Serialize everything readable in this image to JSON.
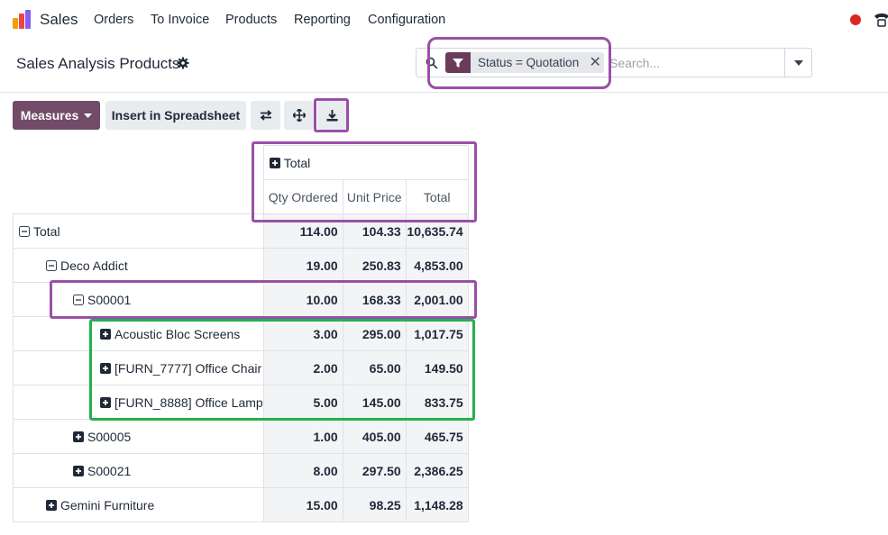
{
  "app": {
    "name": "Sales"
  },
  "nav": [
    {
      "label": "Orders"
    },
    {
      "label": "To Invoice"
    },
    {
      "label": "Products"
    },
    {
      "label": "Reporting"
    },
    {
      "label": "Configuration"
    }
  ],
  "breadcrumb": {
    "title": "Sales Analysis Products"
  },
  "search": {
    "facet_label": "Status = Quotation",
    "placeholder": "Search..."
  },
  "toolbar": {
    "measures_label": "Measures",
    "insert_label": "Insert in Spreadsheet"
  },
  "pivot": {
    "col_header": "Total",
    "measures": [
      "Qty Ordered",
      "Unit Price",
      "Total"
    ],
    "rows": [
      {
        "label": "Total",
        "level": 0,
        "state": "expanded",
        "qty": "114.00",
        "price": "104.33",
        "total": "10,635.74"
      },
      {
        "label": "Deco Addict",
        "level": 1,
        "state": "expanded",
        "qty": "19.00",
        "price": "250.83",
        "total": "4,853.00"
      },
      {
        "label": "S00001",
        "level": 2,
        "state": "expanded",
        "qty": "10.00",
        "price": "168.33",
        "total": "2,001.00"
      },
      {
        "label": "Acoustic Bloc Screens",
        "level": 3,
        "state": "collapsed",
        "qty": "3.00",
        "price": "295.00",
        "total": "1,017.75"
      },
      {
        "label": "[FURN_7777] Office Chair",
        "level": 3,
        "state": "collapsed",
        "qty": "2.00",
        "price": "65.00",
        "total": "149.50"
      },
      {
        "label": "[FURN_8888] Office Lamp",
        "level": 3,
        "state": "collapsed",
        "qty": "5.00",
        "price": "145.00",
        "total": "833.75"
      },
      {
        "label": "S00005",
        "level": 2,
        "state": "collapsed",
        "qty": "1.00",
        "price": "405.00",
        "total": "465.75"
      },
      {
        "label": "S00021",
        "level": 2,
        "state": "collapsed",
        "qty": "8.00",
        "price": "297.50",
        "total": "2,386.25"
      },
      {
        "label": "Gemini Furniture",
        "level": 1,
        "state": "collapsed",
        "qty": "15.00",
        "price": "98.25",
        "total": "1,148.28"
      }
    ]
  },
  "colors": {
    "brand": "#714b67",
    "facet_icon": "#6b3b5a",
    "highlight_purple": "#9b4fa8",
    "highlight_green": "#22b14c",
    "recording_dot": "#dc2626"
  },
  "icons": {
    "app_logo": "sales-bar-chart-logo",
    "gear": "gear-icon",
    "search": "search-icon",
    "filter": "filter-icon",
    "flip_axis": "flip-axis-icon",
    "expand_all": "expand-arrows-icon",
    "download": "download-icon"
  }
}
